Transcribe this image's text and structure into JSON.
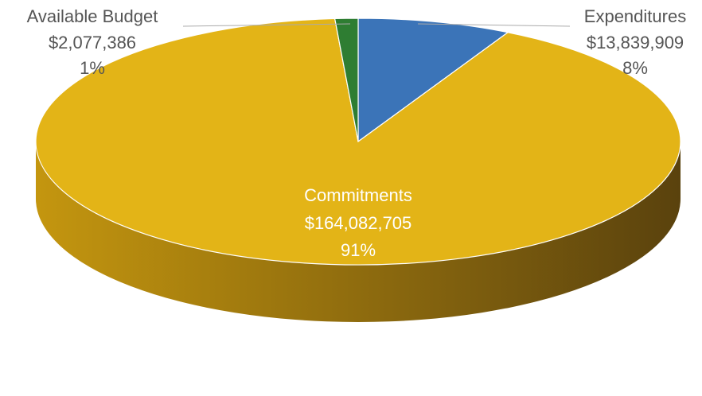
{
  "chart_data": {
    "type": "pie",
    "style": "3d",
    "slices": [
      {
        "name": "Expenditures",
        "value": 13839909,
        "value_label": "$13,839,909",
        "percent_label": "8%",
        "color": "#3b74b8"
      },
      {
        "name": "Commitments",
        "value": 164082705,
        "value_label": "$164,082,705",
        "percent_label": "91%",
        "color": "#e3b417"
      },
      {
        "name": "Available Budget",
        "value": 2077386,
        "value_label": "$2,077,386",
        "percent_label": "1%",
        "color": "#2e7d32"
      }
    ],
    "side_colors": [
      "#c4960f",
      "#5a420d"
    ],
    "edge_color": "#ffffff"
  }
}
